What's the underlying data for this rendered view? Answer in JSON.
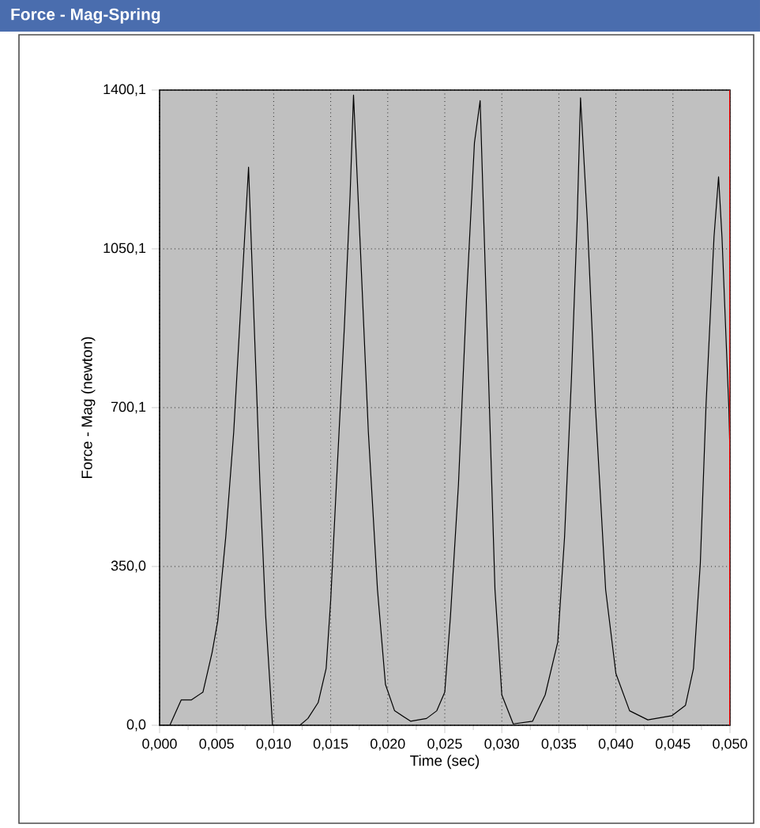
{
  "chart_data": {
    "type": "line",
    "title": "Force - Mag-Spring",
    "xlabel": "Time (sec)",
    "ylabel": "Force - Mag (newton)",
    "xlim": [
      0,
      0.05
    ],
    "ylim": [
      0,
      1400.1
    ],
    "xticks": [
      {
        "value": 0,
        "label": "0,000"
      },
      {
        "value": 0.005,
        "label": "0,005"
      },
      {
        "value": 0.01,
        "label": "0,010"
      },
      {
        "value": 0.015,
        "label": "0,015"
      },
      {
        "value": 0.02,
        "label": "0,020"
      },
      {
        "value": 0.025,
        "label": "0,025"
      },
      {
        "value": 0.03,
        "label": "0,030"
      },
      {
        "value": 0.035,
        "label": "0,035"
      },
      {
        "value": 0.04,
        "label": "0,040"
      },
      {
        "value": 0.045,
        "label": "0,045"
      },
      {
        "value": 0.05,
        "label": "0,050"
      }
    ],
    "yticks": [
      {
        "value": 0,
        "label": "0,0"
      },
      {
        "value": 350,
        "label": "350,0"
      },
      {
        "value": 700.1,
        "label": "700,1"
      },
      {
        "value": 1050.1,
        "label": "1050,1"
      },
      {
        "value": 1400.1,
        "label": "1400,1"
      }
    ],
    "grid": true,
    "marker": "none",
    "line_style": "solid",
    "ref_lines": [
      {
        "axis": "x",
        "value": 0.05,
        "color": "#ff0000"
      }
    ],
    "series": [
      {
        "color": "#000000",
        "x": [
          0,
          0.0009,
          0.0019,
          0.0028,
          0.0038,
          0.0046,
          0.0051,
          0.0058,
          0.0065,
          0.0072,
          0.0078,
          0.0083,
          0.0088,
          0.0093,
          0.0099,
          0.0123,
          0.013,
          0.0139,
          0.0146,
          0.015,
          0.0155,
          0.0162,
          0.0167,
          0.017,
          0.0176,
          0.0183,
          0.0191,
          0.0198,
          0.0206,
          0.022,
          0.0234,
          0.0243,
          0.025,
          0.0255,
          0.0262,
          0.0269,
          0.0276,
          0.0281,
          0.0287,
          0.0294,
          0.03,
          0.031,
          0.0327,
          0.0338,
          0.0349,
          0.0355,
          0.0361,
          0.0366,
          0.0369,
          0.0375,
          0.0382,
          0.0391,
          0.04,
          0.0412,
          0.0428,
          0.0449,
          0.0461,
          0.0468,
          0.0474,
          0.0479,
          0.0486,
          0.049,
          0.0493,
          0.0499,
          0.05
        ],
        "values": [
          0,
          0,
          56,
          56,
          73,
          160,
          230,
          415,
          647,
          960,
          1230,
          879,
          531,
          241,
          0,
          0,
          15,
          50,
          125,
          276,
          531,
          879,
          1168,
          1389,
          1052,
          647,
          299,
          90,
          32,
          9,
          15,
          32,
          73,
          241,
          531,
          937,
          1284,
          1377,
          879,
          299,
          67,
          3,
          9,
          67,
          183,
          415,
          763,
          1110,
          1383,
          1110,
          705,
          299,
          114,
          32,
          12,
          21,
          44,
          125,
          357,
          705,
          1076,
          1209,
          1076,
          699,
          600
        ]
      }
    ]
  }
}
